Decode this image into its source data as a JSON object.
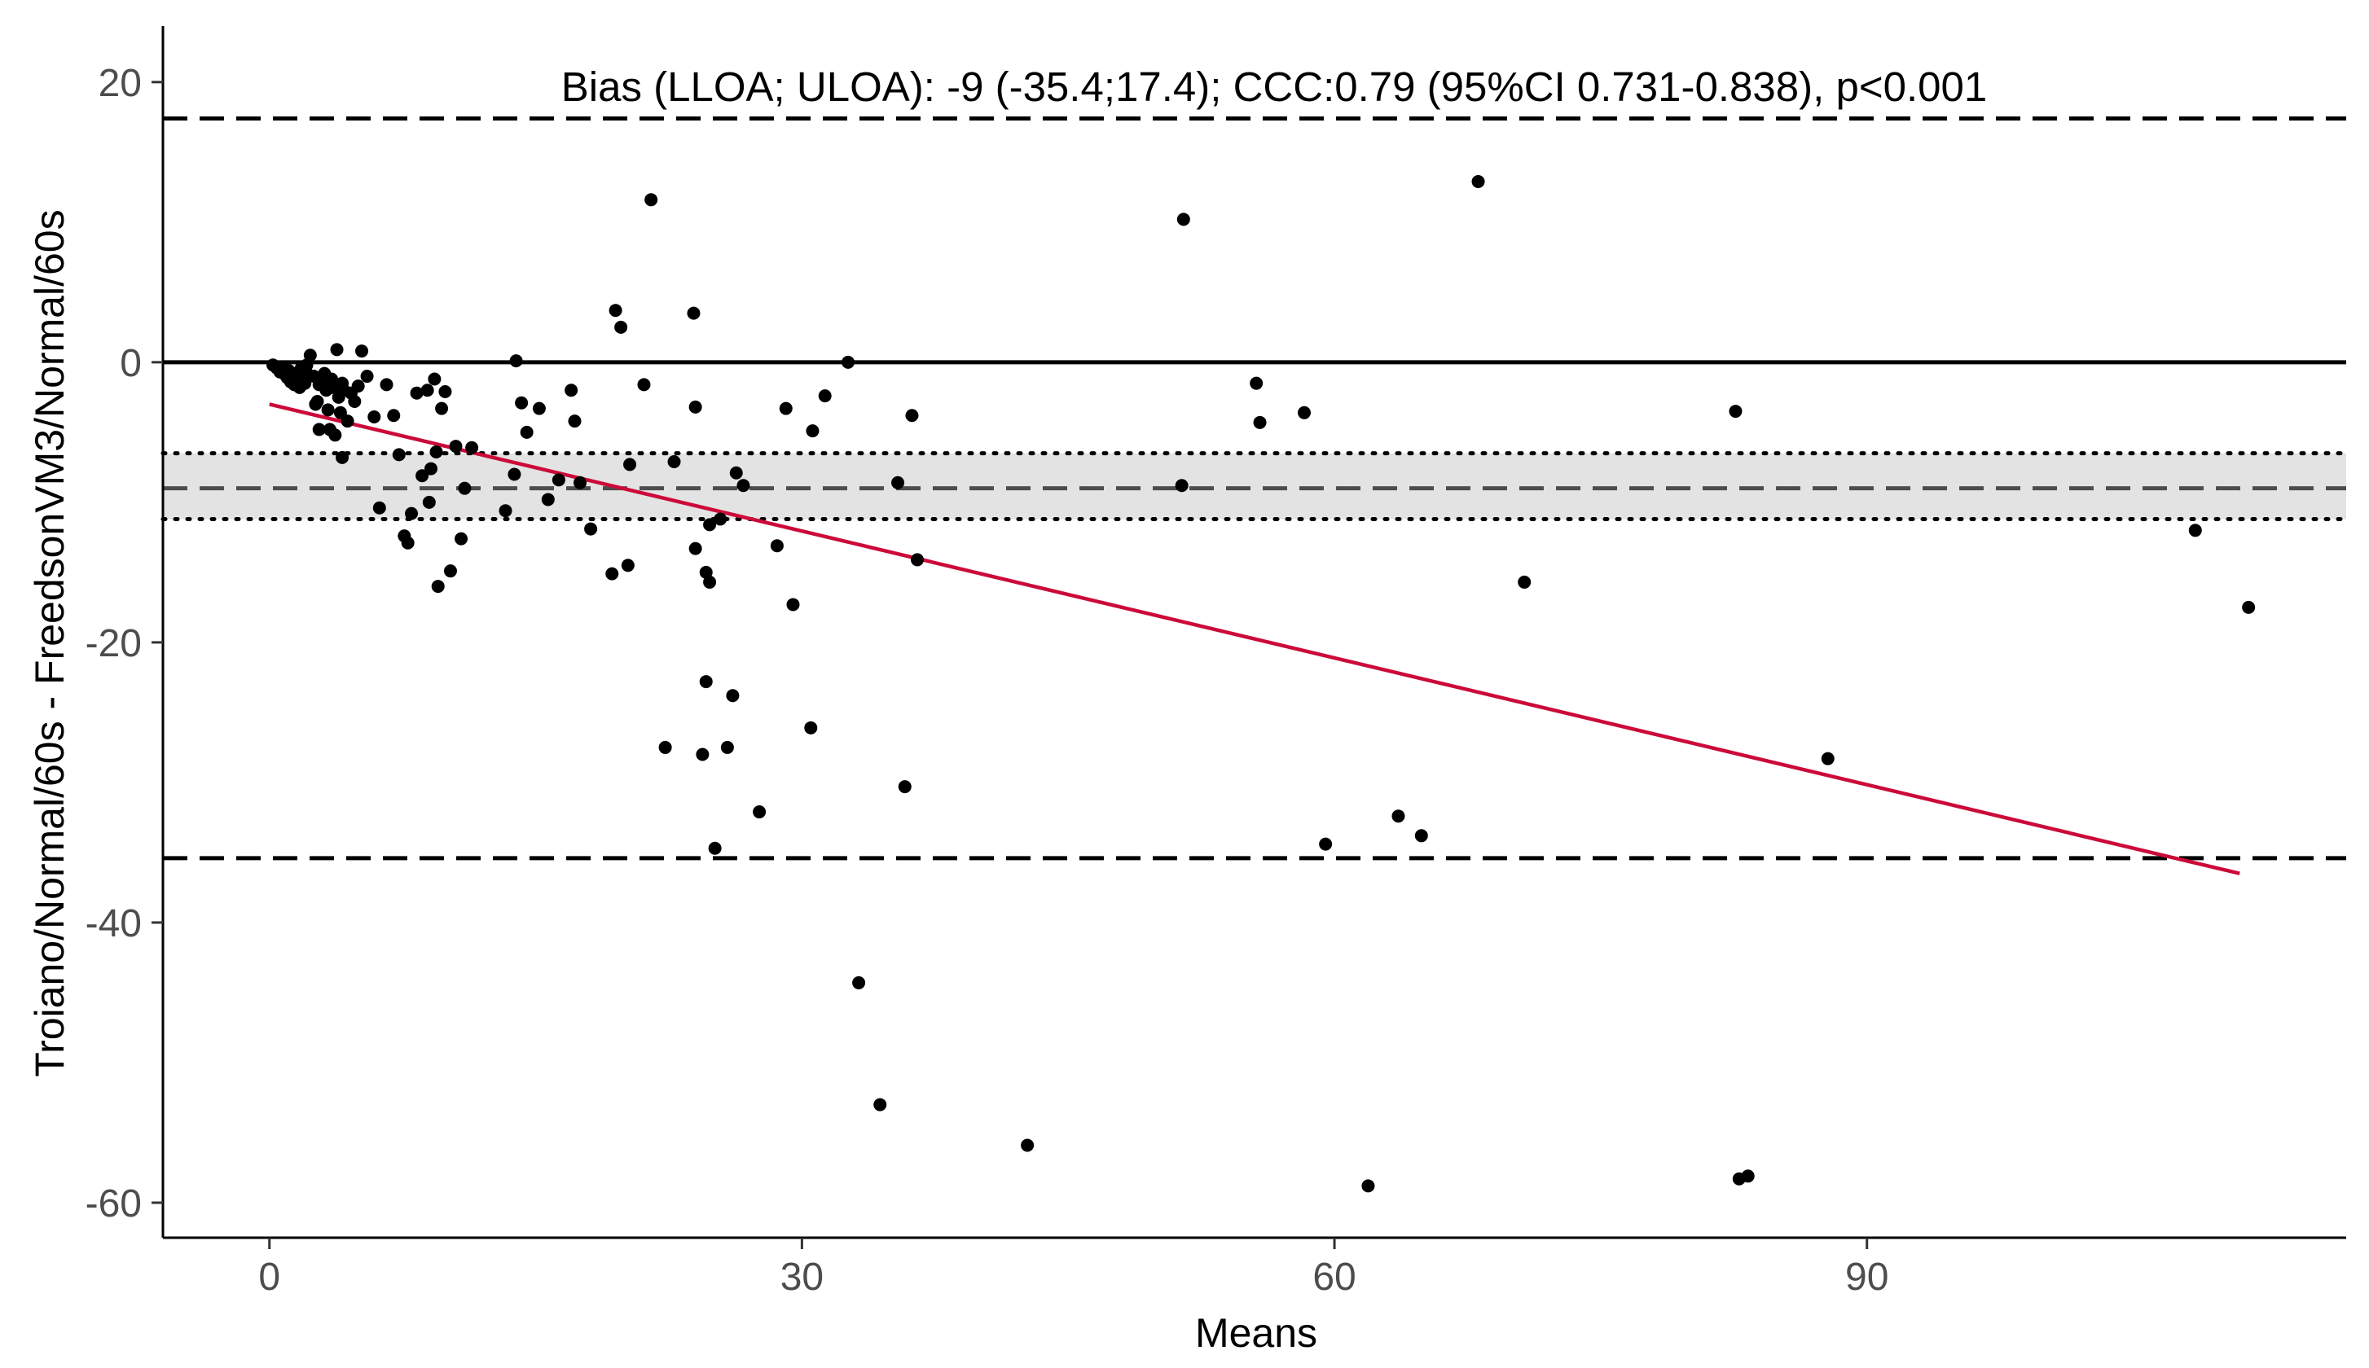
{
  "chart_data": {
    "type": "scatter",
    "annotation": "Bias (LLOA; ULOA): -9 (-35.4;17.4); CCC:0.79 (95%CI 0.731-0.838), p<0.001",
    "xlabel": "Means",
    "ylabel": "Troiano/Normal/60s - FreedsonVM3/Normal/60s",
    "xlim": [
      -6,
      117
    ],
    "ylim": [
      -62.5,
      24
    ],
    "xticks": [
      0,
      30,
      60,
      90
    ],
    "yticks": [
      20,
      0,
      -20,
      -40,
      -60
    ],
    "grid": false,
    "reference_lines": {
      "zero": 0,
      "bias": -9,
      "lloa": -35.4,
      "uloa": 17.4,
      "bias_ci": [
        -11.2,
        -6.5
      ]
    },
    "trend_line": {
      "x": [
        0,
        111
      ],
      "y": [
        -3.0,
        -36.5
      ]
    },
    "colors": {
      "points": "#000000",
      "trend": "#cc0a3a",
      "ci_band": "#e3e3e3",
      "reference": "#000000",
      "bias_line": "#4d4d4d"
    },
    "points": [
      [
        0.2,
        -0.2
      ],
      [
        0.4,
        -0.4
      ],
      [
        0.6,
        -0.7
      ],
      [
        0.8,
        -0.5
      ],
      [
        0.9,
        -0.9
      ],
      [
        1.0,
        -1.1
      ],
      [
        1.1,
        -0.6
      ],
      [
        1.2,
        -1.4
      ],
      [
        1.3,
        -1.0
      ],
      [
        1.4,
        -1.6
      ],
      [
        1.5,
        -0.8
      ],
      [
        1.6,
        -1.3
      ],
      [
        1.7,
        -1.8
      ],
      [
        1.8,
        -0.4
      ],
      [
        1.9,
        -1.2
      ],
      [
        2.0,
        -1.5
      ],
      [
        2.1,
        -0.2
      ],
      [
        2.2,
        -0.9
      ],
      [
        2.3,
        0.5
      ],
      [
        2.5,
        -1.0
      ],
      [
        2.6,
        -3.0
      ],
      [
        2.7,
        -2.8
      ],
      [
        2.8,
        -1.6
      ],
      [
        3.0,
        -1.1
      ],
      [
        3.1,
        -0.8
      ],
      [
        3.2,
        -2.0
      ],
      [
        3.3,
        -3.4
      ],
      [
        3.4,
        -1.4
      ],
      [
        3.5,
        -1.2
      ],
      [
        3.6,
        -1.8
      ],
      [
        3.8,
        0.9
      ],
      [
        3.9,
        -2.5
      ],
      [
        4.0,
        -3.6
      ],
      [
        4.1,
        -1.5
      ],
      [
        4.2,
        -2.0
      ],
      [
        4.4,
        -4.2
      ],
      [
        4.6,
        -2.2
      ],
      [
        4.8,
        -2.8
      ],
      [
        5.0,
        -1.7
      ],
      [
        5.2,
        0.8
      ],
      [
        2.8,
        -4.8
      ],
      [
        3.4,
        -4.8
      ],
      [
        3.7,
        -5.2
      ],
      [
        4.1,
        -6.8
      ],
      [
        5.5,
        -1.0
      ],
      [
        5.9,
        -3.9
      ],
      [
        6.2,
        -10.4
      ],
      [
        6.6,
        -1.6
      ],
      [
        7.0,
        -3.8
      ],
      [
        7.3,
        -6.6
      ],
      [
        7.6,
        -12.4
      ],
      [
        7.8,
        -12.9
      ],
      [
        8.0,
        -10.8
      ],
      [
        8.3,
        -2.2
      ],
      [
        8.6,
        -8.1
      ],
      [
        8.9,
        -2.0
      ],
      [
        9.0,
        -10.0
      ],
      [
        9.1,
        -7.6
      ],
      [
        9.3,
        -1.2
      ],
      [
        9.4,
        -6.4
      ],
      [
        9.5,
        -16.0
      ],
      [
        9.7,
        -3.3
      ],
      [
        9.9,
        -2.1
      ],
      [
        10.2,
        -14.9
      ],
      [
        10.5,
        -6.0
      ],
      [
        10.8,
        -12.6
      ],
      [
        11.0,
        -9.0
      ],
      [
        11.4,
        -6.1
      ],
      [
        13.3,
        -10.6
      ],
      [
        13.8,
        -8.0
      ],
      [
        13.9,
        0.1
      ],
      [
        14.2,
        -2.9
      ],
      [
        14.5,
        -5.0
      ],
      [
        15.2,
        -3.3
      ],
      [
        15.7,
        -9.8
      ],
      [
        16.3,
        -8.4
      ],
      [
        17.0,
        -2.0
      ],
      [
        17.2,
        -4.2
      ],
      [
        17.5,
        -8.6
      ],
      [
        18.1,
        -11.9
      ],
      [
        19.3,
        -15.1
      ],
      [
        19.5,
        3.7
      ],
      [
        19.8,
        2.5
      ],
      [
        20.2,
        -14.5
      ],
      [
        20.3,
        -7.3
      ],
      [
        21.1,
        -1.6
      ],
      [
        21.5,
        11.6
      ],
      [
        22.3,
        -27.5
      ],
      [
        22.8,
        -7.1
      ],
      [
        23.9,
        3.5
      ],
      [
        24.0,
        -3.2
      ],
      [
        24.0,
        -13.3
      ],
      [
        24.4,
        -28.0
      ],
      [
        24.6,
        -22.8
      ],
      [
        24.6,
        -15.0
      ],
      [
        24.8,
        -15.7
      ],
      [
        24.8,
        -11.6
      ],
      [
        25.1,
        -34.7
      ],
      [
        25.4,
        -11.2
      ],
      [
        25.8,
        -27.5
      ],
      [
        26.1,
        -23.8
      ],
      [
        26.3,
        -7.9
      ],
      [
        26.7,
        -8.8
      ],
      [
        27.6,
        -32.1
      ],
      [
        28.6,
        -13.1
      ],
      [
        29.1,
        -3.3
      ],
      [
        29.5,
        -17.3
      ],
      [
        30.5,
        -26.1
      ],
      [
        30.6,
        -4.9
      ],
      [
        31.3,
        -2.4
      ],
      [
        32.6,
        0.0
      ],
      [
        33.2,
        -44.3
      ],
      [
        34.4,
        -53.0
      ],
      [
        35.4,
        -8.6
      ],
      [
        35.8,
        -30.3
      ],
      [
        36.2,
        -3.8
      ],
      [
        36.5,
        -14.1
      ],
      [
        42.7,
        -55.9
      ],
      [
        51.4,
        -8.8
      ],
      [
        51.5,
        10.2
      ],
      [
        55.6,
        -1.5
      ],
      [
        55.8,
        -4.3
      ],
      [
        58.3,
        -3.6
      ],
      [
        59.5,
        -34.4
      ],
      [
        61.9,
        -58.8
      ],
      [
        63.6,
        -32.4
      ],
      [
        64.9,
        -33.8
      ],
      [
        68.1,
        12.9
      ],
      [
        70.7,
        -15.7
      ],
      [
        82.6,
        -3.5
      ],
      [
        82.8,
        -58.3
      ],
      [
        83.3,
        -58.1
      ],
      [
        87.8,
        -28.3
      ],
      [
        108.5,
        -12.0
      ],
      [
        111.5,
        -17.5
      ]
    ]
  }
}
